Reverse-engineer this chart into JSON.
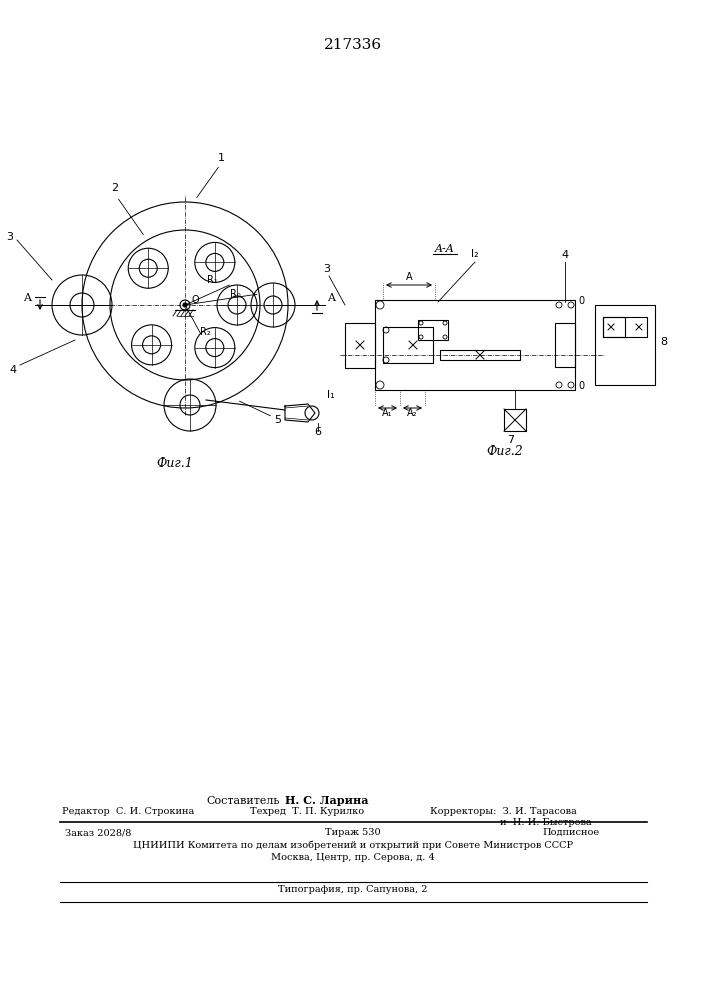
{
  "title_number": "217336",
  "fig1_label": "Фиг.1",
  "fig2_label": "Фиг.2",
  "aa_label": "A-A",
  "bg_color": "#ffffff",
  "line_color": "#000000",
  "composer_text": "Составитель",
  "composer_name": "Н. С. Ларина",
  "editor_text": "Редактор С. И. Строкина",
  "techred_text": "Техред Т. П. Курилко",
  "corr_text": "Корректоры: З. И. Тарасова",
  "corr2_text": "и Н. И. Быстрова",
  "order_text": "Заказ 2028/8",
  "tirazh_text": "Тираж 530",
  "podp_text": "Подписное",
  "cniip_text": "ЦНИИПИ Коматета по делам изобретений и открытий при Совете Министров СССР",
  "moscow_text": "Москва, Центр. пр. Серова, д. 4",
  "typog_text": "Типография, пр. Сапунова, 2"
}
